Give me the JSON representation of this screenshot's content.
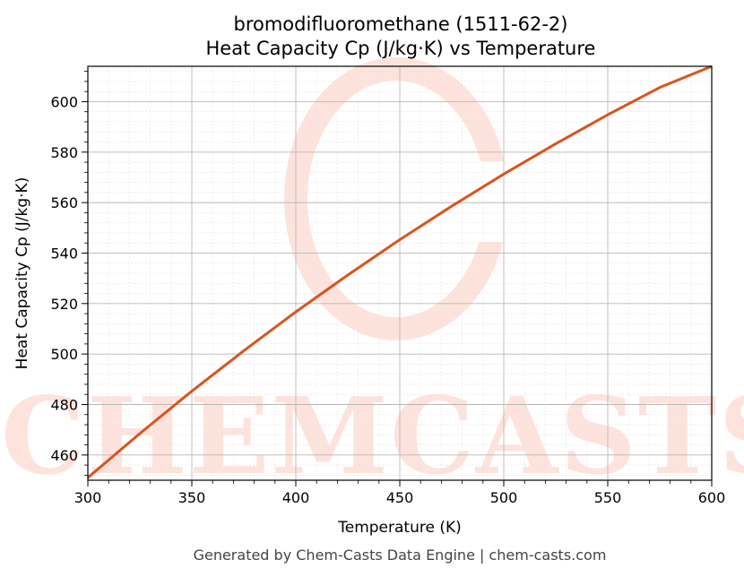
{
  "chart_data": {
    "type": "line",
    "title": "bromodifluoromethane (1511-62-2)",
    "subtitle": "Heat Capacity Cp (J/kg·K) vs Temperature",
    "xlabel": "Temperature (K)",
    "ylabel": "Heat Capacity Cp (J/kg·K)",
    "xlim": [
      300,
      600
    ],
    "ylim": [
      450,
      614
    ],
    "xticks": [
      300,
      350,
      400,
      450,
      500,
      550,
      600
    ],
    "yticks": [
      460,
      480,
      500,
      520,
      540,
      560,
      580,
      600
    ],
    "grid": true,
    "series": [
      {
        "color": "#d9541e",
        "x": [
          300,
          325,
          350,
          375,
          400,
          425,
          450,
          475,
          500,
          525,
          550,
          575,
          600
        ],
        "y": [
          451,
          468.5,
          485.3,
          501.3,
          516.7,
          531.3,
          545.3,
          558.6,
          571.3,
          583.3,
          594.8,
          605.6,
          614
        ]
      }
    ]
  },
  "watermark": {
    "text": "CHEMCASTS",
    "color": "#fde3dc"
  },
  "footer": {
    "text": "Generated by Chem-Casts Data Engine | chem-casts.com"
  }
}
